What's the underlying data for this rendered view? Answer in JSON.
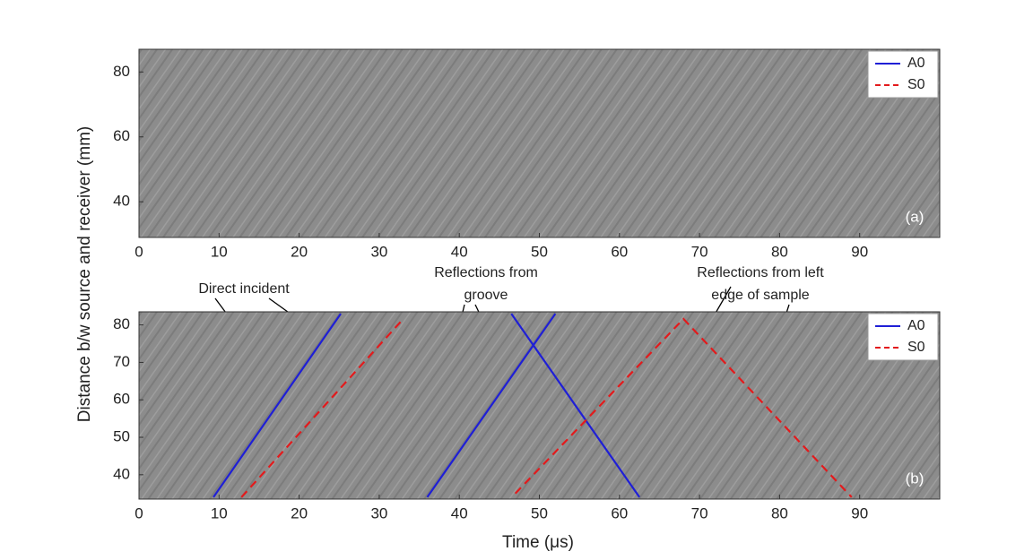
{
  "chart_data": [
    {
      "type": "line",
      "panel_label": "(a)",
      "ylabel": "Distance b/w source and receiver (mm)",
      "xlim": [
        0,
        100
      ],
      "ylim": [
        29,
        87
      ],
      "xticks": [
        0,
        10,
        20,
        30,
        40,
        50,
        60,
        70,
        80,
        90
      ],
      "yticks": [
        40,
        60,
        80
      ],
      "legend": "upper right",
      "series": [
        {
          "name": "A0",
          "color": "#1f1fd6",
          "linestyle": "solid",
          "x": [],
          "y": []
        },
        {
          "name": "S0",
          "color": "#e31a1c",
          "linestyle": "dashed",
          "x": [],
          "y": []
        }
      ]
    },
    {
      "type": "line",
      "panel_label": "(b)",
      "xlabel": "Time (μs)",
      "xlim": [
        0,
        100
      ],
      "ylim": [
        33.5,
        83.5
      ],
      "xticks": [
        0,
        10,
        20,
        30,
        40,
        50,
        60,
        70,
        80,
        90
      ],
      "yticks": [
        40,
        50,
        60,
        70,
        80
      ],
      "legend": "upper right",
      "annotations": [
        "Direct incident",
        "Reflections from",
        "groove",
        "Reflections from left",
        "edge of sample"
      ],
      "series": [
        {
          "name": "A0",
          "color": "#1f1fd6",
          "linestyle": "solid",
          "x": [
            9.3,
            25.2,
            null,
            36,
            52,
            null,
            46.5,
            62.5
          ],
          "y": [
            34,
            83,
            null,
            34,
            83,
            null,
            83,
            34
          ]
        },
        {
          "name": "S0",
          "color": "#e31a1c",
          "linestyle": "dashed",
          "x": [
            12.8,
            33,
            null,
            47,
            68,
            89
          ],
          "y": [
            34,
            81.6,
            null,
            35,
            81.6,
            34
          ]
        }
      ]
    }
  ]
}
